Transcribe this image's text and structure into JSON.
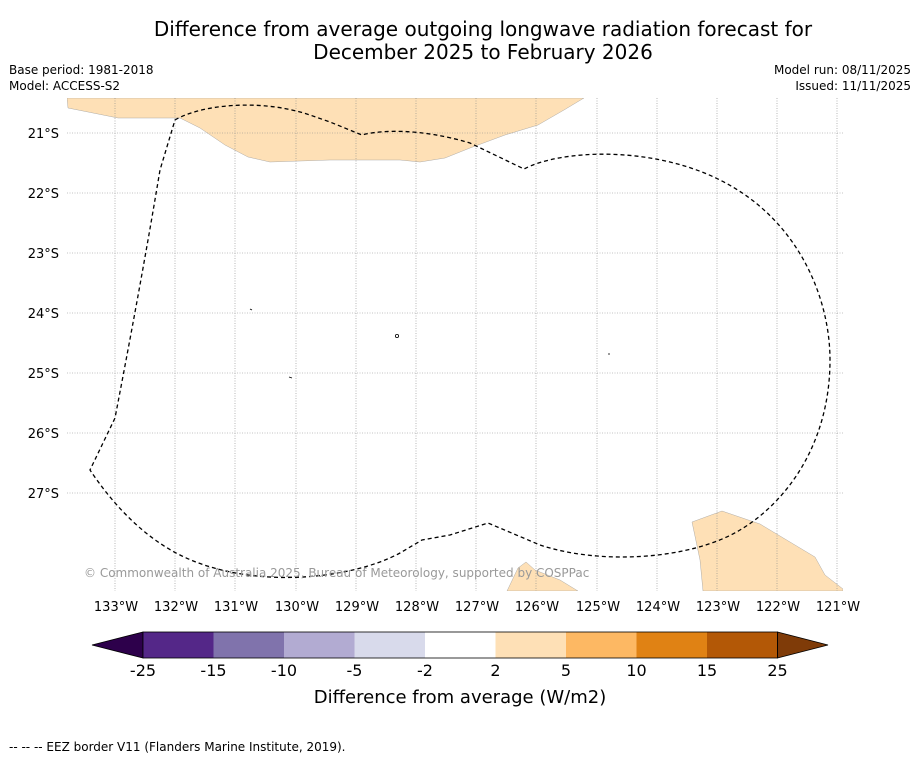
{
  "title": {
    "line1": "Difference from average outgoing longwave radiation forecast for",
    "line2": "December 2025 to February 2026"
  },
  "meta_left": {
    "base_period": "Base period: 1981-2018",
    "model": "Model: ACCESS-S2"
  },
  "meta_right": {
    "model_run": "Model run: 08/11/2025",
    "issued": "Issued: 11/11/2025"
  },
  "map": {
    "lat_labels": [
      "21°S",
      "22°S",
      "23°S",
      "24°S",
      "25°S",
      "26°S",
      "27°S"
    ],
    "lon_labels": [
      "133°W",
      "132°W",
      "131°W",
      "130°W",
      "129°W",
      "128°W",
      "127°W",
      "126°W",
      "125°W",
      "124°W",
      "123°W",
      "122°W",
      "121°W"
    ],
    "copyright": "© Commonwealth of Australia 2025, Bureau of Meteorology, supported by COSPPac",
    "anomaly_color": "#fee0b6",
    "eez_label": "EEZ border"
  },
  "colorbar": {
    "ticks": [
      "-25",
      "-15",
      "-10",
      "-5",
      "-2",
      "2",
      "5",
      "10",
      "15",
      "25"
    ],
    "colors": [
      "#2d004b",
      "#542788",
      "#8073ac",
      "#b2abd2",
      "#d8daeb",
      "#ffffff",
      "#fee0b6",
      "#fdb863",
      "#e08214",
      "#b35806",
      "#7f3b08"
    ],
    "label": "Difference from average (W/m2)"
  },
  "footer": "--  --  -- EEZ border V11 (Flanders Marine Institute, 2019)."
}
